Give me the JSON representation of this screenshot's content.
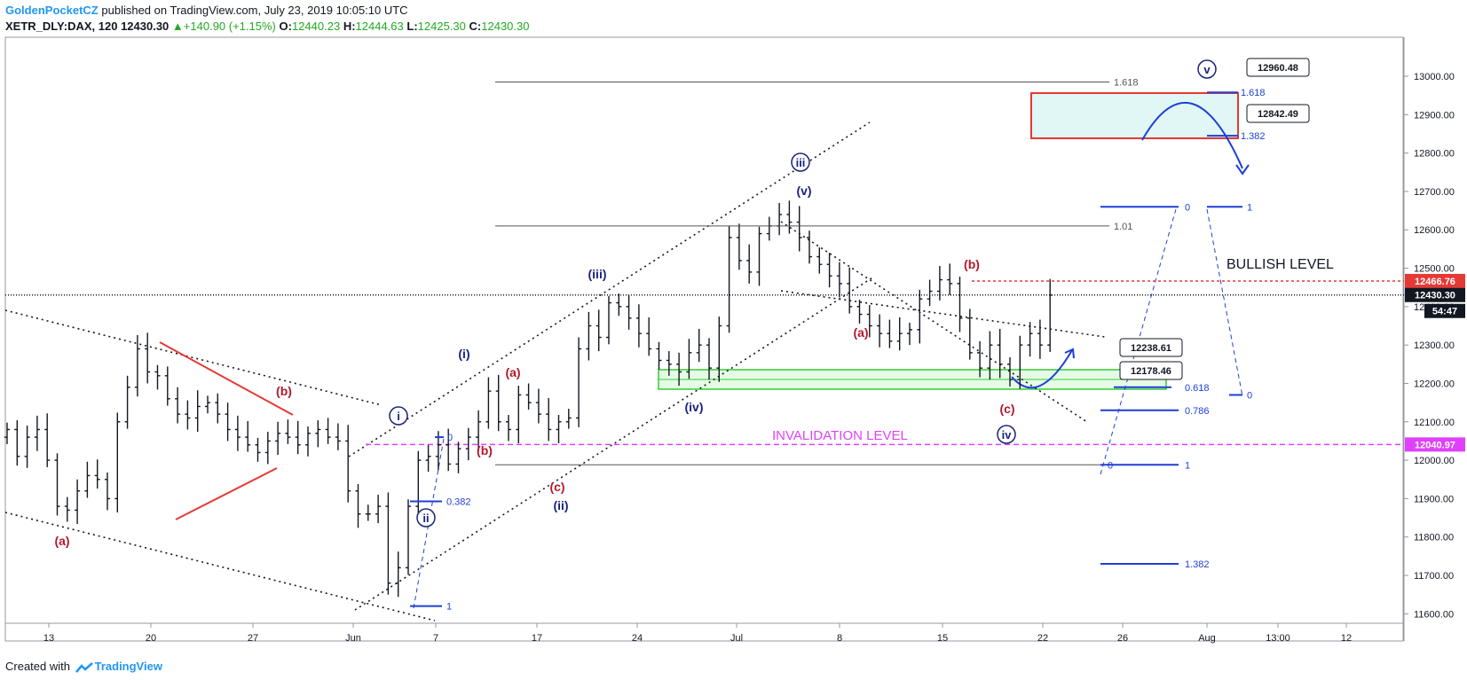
{
  "header": {
    "author": "GoldenPocketCZ",
    "published": "published on TradingView.com, July 23, 2019 10:05:10 UTC",
    "symbol": "XETR_DLY:DAX, 120",
    "last": "12430.30",
    "change": "+140.90 (+1.15%)",
    "open_label": "O:",
    "open": "12440.23",
    "high_label": "H:",
    "high": "12444.63",
    "low_label": "L:",
    "low": "12425.30",
    "close_label": "C:",
    "close": "12430.30"
  },
  "footer": {
    "created_with": "Created with",
    "brand": "TradingView"
  },
  "colors": {
    "wave_red": "#b2182b",
    "wave_blue": "#1a237e",
    "accent_blue": "#1e3fd6",
    "invalidation": "#e040fb",
    "price_tag": "#e53935"
  },
  "chart_data": {
    "type": "ohlc",
    "ylim": [
      11560,
      13110
    ],
    "y_ticks": [
      "13000.00",
      "12900.00",
      "12800.00",
      "12700.00",
      "12600.00",
      "12500.00",
      "12400.00",
      "12300.00",
      "12200.00",
      "12100.00",
      "12000.00",
      "11900.00",
      "11800.00",
      "11700.00",
      "11600.00"
    ],
    "x_ticks": [
      "13",
      "20",
      "27",
      "Jun",
      "7",
      "17",
      "24",
      "Jul",
      "8",
      "15",
      "22",
      "26",
      "Aug",
      "13:00",
      "12"
    ],
    "series": [
      {
        "x_start": "2019-05-10",
        "x_end": "2019-07-23",
        "closes": [
          12080,
          12010,
          12060,
          12080,
          12000,
          11880,
          11870,
          11920,
          11960,
          11950,
          11900,
          12100,
          12190,
          12290,
          12230,
          12220,
          12160,
          12120,
          12110,
          12140,
          12150,
          12120,
          12080,
          12060,
          12040,
          12020,
          12050,
          12070,
          12060,
          12040,
          12070,
          12080,
          12060,
          12050,
          11920,
          11860,
          11860,
          11880,
          11680,
          11720,
          11880,
          12000,
          12010,
          12040,
          11990,
          12030,
          12060,
          12100,
          12180,
          12100,
          12080,
          12170,
          12150,
          12120,
          12080,
          12100,
          12110,
          12290,
          12350,
          12320,
          12410,
          12400,
          12370,
          12330,
          12290,
          12260,
          12250,
          12230,
          12280,
          12300,
          12240,
          12350,
          12580,
          12520,
          12490,
          12590,
          12610,
          12640,
          12620,
          12580,
          12530,
          12510,
          12480,
          12460,
          12400,
          12380,
          12350,
          12330,
          12310,
          12330,
          12340,
          12420,
          12440,
          12470,
          12460,
          12370,
          12280,
          12240,
          12300,
          12250,
          12210,
          12300,
          12330,
          12300,
          12430
        ]
      }
    ],
    "last_price": "12430.30",
    "countdown": "54:47",
    "levels": [
      {
        "value": 12466.76,
        "label": "12466.76",
        "style": "red-dotted"
      },
      {
        "value": 12040.97,
        "label": "12040.97",
        "style": "magenta-dashed"
      },
      {
        "value": 12430.3,
        "style": "black-dotted"
      }
    ],
    "fib_gray": [
      {
        "value": 12985,
        "label": "1.618"
      },
      {
        "value": 12610,
        "label": "1.01"
      },
      {
        "value": 11988,
        "label": ""
      }
    ],
    "fib_blue": [
      {
        "value": 12660,
        "label": "0"
      },
      {
        "value": 12660,
        "label": "1"
      },
      {
        "value": 12190,
        "label": "0.618"
      },
      {
        "value": 12170,
        "label": "0"
      },
      {
        "value": 12130,
        "label": "0.786"
      },
      {
        "value": 11988,
        "label": "0"
      },
      {
        "value": 11988,
        "label": "1"
      },
      {
        "value": 11730,
        "label": "1.382"
      },
      {
        "value": 12958,
        "label": "1.618"
      },
      {
        "value": 12845,
        "label": "1.382"
      },
      {
        "value": 11893,
        "label": "0.382"
      },
      {
        "value": 11620,
        "label": "1"
      },
      {
        "value": 12060,
        "label": "0"
      }
    ],
    "price_callouts": [
      "12960.48",
      "12842.49",
      "12238.61",
      "12178.46"
    ],
    "text_annotations": [
      "BULLISH LEVEL",
      "INVALIDATION LEVEL"
    ],
    "wave_labels_red": [
      "(a)",
      "(b)",
      "(a)",
      "(b)",
      "(c)",
      "(a)",
      "(b)",
      "(c)"
    ],
    "wave_labels_blue": [
      "(i)",
      "(iii)",
      "(iv)",
      "(ii)",
      "(v)"
    ],
    "wave_labels_circled": [
      "i",
      "ii",
      "iii",
      "iv",
      "v"
    ]
  }
}
